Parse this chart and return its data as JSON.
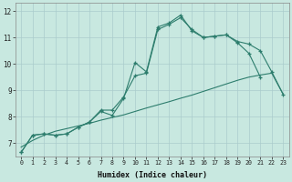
{
  "xlabel": "Humidex (Indice chaleur)",
  "line_color": "#2d7d6d",
  "bg_color": "#c8e8e0",
  "grid_color": "#b0d8d0",
  "xlim": [
    -0.5,
    23.5
  ],
  "ylim": [
    6.5,
    12.3
  ],
  "xticks": [
    0,
    1,
    2,
    3,
    4,
    5,
    6,
    7,
    8,
    9,
    10,
    11,
    12,
    13,
    14,
    15,
    16,
    17,
    18,
    19,
    20,
    21,
    22,
    23
  ],
  "yticks": [
    7,
    8,
    9,
    10,
    11,
    12
  ],
  "line1_x": [
    0,
    1,
    2,
    3,
    4,
    5,
    6,
    7,
    8,
    9,
    10,
    11,
    12,
    13,
    14,
    15,
    16,
    17,
    18,
    19,
    20,
    21
  ],
  "line1_y": [
    6.65,
    7.3,
    7.35,
    7.3,
    7.35,
    7.6,
    7.8,
    8.25,
    8.25,
    8.75,
    9.55,
    9.65,
    11.3,
    11.5,
    11.75,
    11.3,
    11.0,
    11.05,
    11.1,
    10.8,
    10.4,
    9.5
  ],
  "line2_x": [
    0,
    1,
    2,
    3,
    4,
    5,
    6,
    7,
    8,
    9,
    10,
    11,
    12,
    13,
    14,
    15,
    16,
    17,
    18,
    19,
    20,
    21,
    22,
    23
  ],
  "line2_y": [
    6.65,
    7.3,
    7.35,
    7.3,
    7.35,
    7.6,
    7.8,
    8.2,
    8.05,
    8.7,
    10.05,
    9.7,
    11.4,
    11.55,
    11.85,
    11.25,
    11.0,
    11.05,
    11.1,
    10.85,
    10.75,
    10.5,
    9.7,
    8.85
  ],
  "line3_x": [
    0,
    1,
    2,
    3,
    4,
    5,
    6,
    7,
    8,
    9,
    10,
    11,
    12,
    13,
    14,
    15,
    16,
    17,
    18,
    19,
    20,
    21,
    22,
    23
  ],
  "line3_y": [
    6.85,
    7.1,
    7.3,
    7.45,
    7.55,
    7.65,
    7.75,
    7.87,
    7.97,
    8.07,
    8.2,
    8.33,
    8.45,
    8.57,
    8.7,
    8.82,
    8.96,
    9.1,
    9.24,
    9.38,
    9.5,
    9.58,
    9.65,
    8.85
  ]
}
